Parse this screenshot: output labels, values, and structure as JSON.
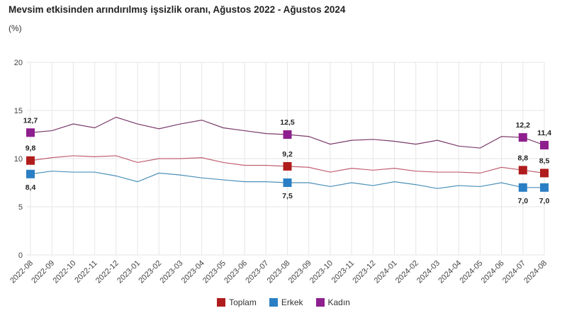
{
  "chart_data": {
    "type": "line",
    "title": "Mevsim etkisinden arındırılmış işsizlik oranı, Ağustos 2022 - Ağustos 2024",
    "ylabel": "(%)",
    "xlabel": "",
    "ylim": [
      0,
      20
    ],
    "yticks": [
      0,
      5,
      10,
      15,
      20
    ],
    "grid": true,
    "legend": "bottom",
    "categories": [
      "2022-08",
      "2022-09",
      "2022-10",
      "2022-11",
      "2022-12",
      "2023-01",
      "2023-02",
      "2023-03",
      "2023-04",
      "2023-05",
      "2023-06",
      "2023-07",
      "2023-08",
      "2023-09",
      "2023-10",
      "2023-11",
      "2023-12",
      "2024-01",
      "2024-02",
      "2024-03",
      "2024-04",
      "2024-05",
      "2024-06",
      "2024-07",
      "2024-08"
    ],
    "series": [
      {
        "name": "Toplam",
        "color": "#b01c1c",
        "values": [
          9.8,
          10.1,
          10.3,
          10.2,
          10.3,
          9.6,
          10.0,
          10.0,
          10.1,
          9.6,
          9.3,
          9.3,
          9.2,
          9.1,
          8.6,
          9.0,
          8.8,
          9.0,
          8.7,
          8.6,
          8.6,
          8.5,
          9.1,
          8.8,
          8.5
        ],
        "line_color": "#c06070"
      },
      {
        "name": "Erkek",
        "color": "#2a7fc4",
        "values": [
          8.4,
          8.7,
          8.6,
          8.6,
          8.2,
          7.6,
          8.5,
          8.3,
          8.0,
          7.8,
          7.6,
          7.6,
          7.5,
          7.5,
          7.1,
          7.5,
          7.2,
          7.6,
          7.3,
          6.9,
          7.2,
          7.1,
          7.5,
          7.0,
          7.0
        ],
        "line_color": "#4a90b8"
      },
      {
        "name": "Kadın",
        "color": "#8e1f8e",
        "values": [
          12.7,
          12.9,
          13.6,
          13.2,
          14.3,
          13.6,
          13.1,
          13.6,
          14.0,
          13.2,
          12.9,
          12.6,
          12.5,
          12.3,
          11.5,
          11.9,
          12.0,
          11.8,
          11.5,
          11.9,
          11.3,
          11.1,
          12.3,
          12.2,
          11.4
        ],
        "line_color": "#7a3a6a"
      }
    ],
    "marked_points": [
      0,
      12,
      23,
      24
    ],
    "data_labels": {
      "Toplam": [
        "9,8",
        "9,2",
        "8,8",
        "8,5"
      ],
      "Erkek": [
        "8,4",
        "7,5",
        "7,0",
        "7,0"
      ],
      "Kadın": [
        "12,7",
        "12,5",
        "12,2",
        "11,4"
      ]
    }
  }
}
